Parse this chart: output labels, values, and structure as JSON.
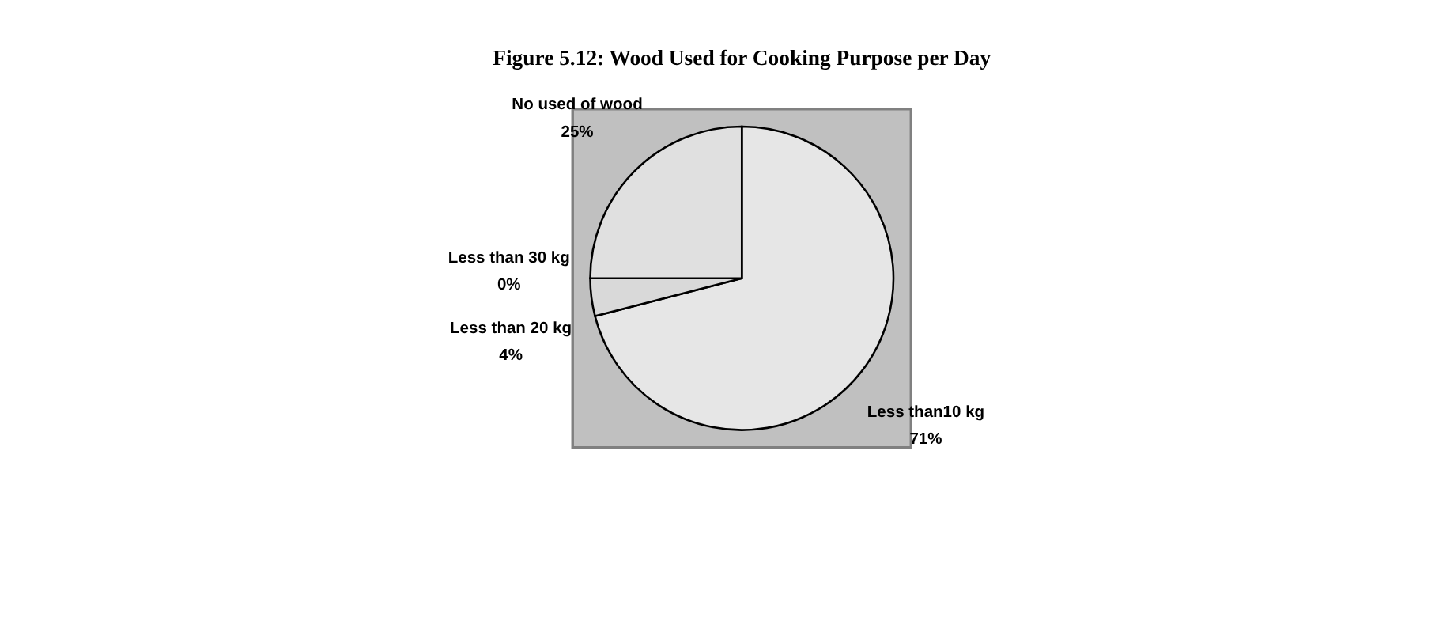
{
  "chart_data": {
    "type": "pie",
    "title": "Figure 5.12: Wood Used for Cooking Purpose per Day",
    "categories": [
      "Less than10 kg",
      "Less than 20 kg",
      "Less than 30 kg",
      "No used of wood"
    ],
    "values": [
      71,
      4,
      0,
      25
    ],
    "value_labels": [
      "71%",
      "4%",
      "0%",
      "25%"
    ],
    "colors": [
      "#e6e6e6",
      "#d9d9d9",
      "#dedede",
      "#e0e0e0"
    ]
  }
}
